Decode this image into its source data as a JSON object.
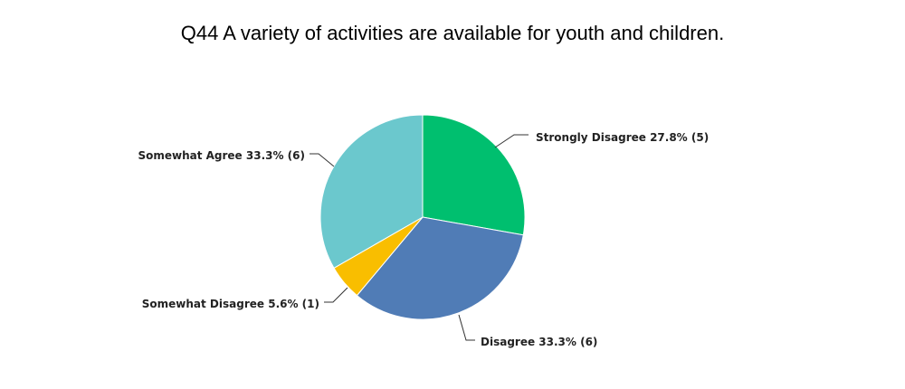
{
  "chart_data": {
    "type": "pie",
    "title": "Q44 A variety of activities are available for youth and children.",
    "slices": [
      {
        "name": "Strongly Disagree",
        "percent": 27.8,
        "count": 5,
        "color": "#00BF6F",
        "label": "Strongly Disagree 27.8% (5)"
      },
      {
        "name": "Disagree",
        "percent": 33.3,
        "count": 6,
        "color": "#507CB6",
        "label": "Disagree 33.3% (6)"
      },
      {
        "name": "Somewhat Disagree",
        "percent": 5.6,
        "count": 1,
        "color": "#F9BE00",
        "label": "Somewhat Disagree 5.6% (1)"
      },
      {
        "name": "Somewhat Agree",
        "percent": 33.3,
        "count": 6,
        "color": "#6BC8CD",
        "label": "Somewhat Agree 33.3% (6)"
      }
    ]
  }
}
